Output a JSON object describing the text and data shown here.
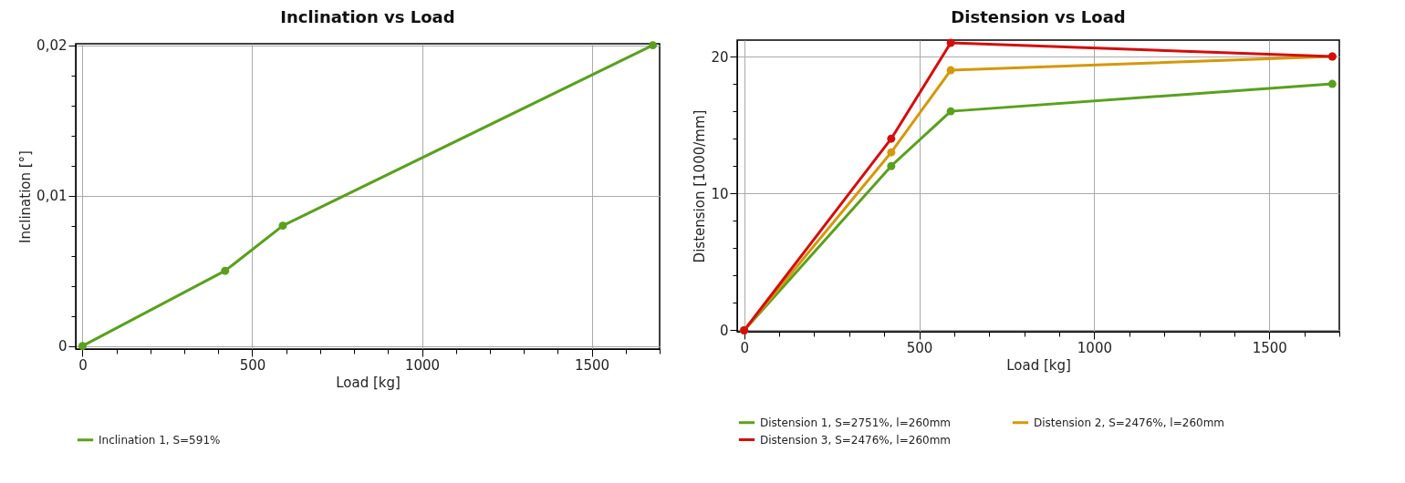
{
  "chart_data": [
    {
      "type": "line",
      "title": "Inclination vs Load",
      "xlabel": "Load [kg]",
      "ylabel": "Inclination [°]",
      "x": [
        0,
        420,
        590,
        1680
      ],
      "series": [
        {
          "name": "Inclination 1, S=591%",
          "color": "#5aa01e",
          "values": [
            0,
            0.005,
            0.008,
            0.02
          ]
        }
      ],
      "xlim": [
        -20,
        1700
      ],
      "ylim": [
        -0.0002,
        0.0201
      ],
      "xticks": [
        0,
        {
          "value": 100,
          "label": null
        },
        {
          "value": 200,
          "label": null
        },
        {
          "value": 300,
          "label": null
        },
        {
          "value": 400,
          "label": null
        },
        500,
        {
          "value": 600,
          "label": null
        },
        {
          "value": 700,
          "label": null
        },
        {
          "value": 800,
          "label": null
        },
        {
          "value": 900,
          "label": null
        },
        1000,
        {
          "value": 1100,
          "label": null
        },
        {
          "value": 1200,
          "label": null
        },
        {
          "value": 1300,
          "label": null
        },
        {
          "value": 1400,
          "label": null
        },
        1500,
        {
          "value": 1600,
          "label": null
        },
        {
          "value": 1700,
          "label": null
        }
      ],
      "yticks": [
        {
          "value": 0,
          "label": "0"
        },
        {
          "value": 0.002,
          "label": null
        },
        {
          "value": 0.004,
          "label": null
        },
        {
          "value": 0.006,
          "label": null
        },
        {
          "value": 0.008,
          "label": null
        },
        {
          "value": 0.01,
          "label": "0,01"
        },
        {
          "value": 0.012,
          "label": null
        },
        {
          "value": 0.014,
          "label": null
        },
        {
          "value": 0.016,
          "label": null
        },
        {
          "value": 0.018,
          "label": null
        },
        {
          "value": 0.02,
          "label": "0,02"
        }
      ],
      "grid": true,
      "legend": "bottom left",
      "marker": "circle",
      "line_style": "solid"
    },
    {
      "type": "line",
      "title": "Distension vs Load",
      "xlabel": "Load [kg]",
      "ylabel": "Distension [1000/mm]",
      "x": [
        0,
        420,
        590,
        1680
      ],
      "series": [
        {
          "name": "Distension 1, S=2751%, l=260mm",
          "color": "#5aa01e",
          "values": [
            0,
            12,
            16,
            18
          ]
        },
        {
          "name": "Distension 2, S=2476%, l=260mm",
          "color": "#d4980a",
          "values": [
            0,
            13,
            19,
            20
          ]
        },
        {
          "name": "Distension 3, S=2476%, l=260mm",
          "color": "#d40e0e",
          "values": [
            0,
            14,
            21,
            20
          ]
        }
      ],
      "xlim": [
        -20,
        1700
      ],
      "ylim": [
        -0.1,
        21.2
      ],
      "xticks": [
        0,
        {
          "value": 100,
          "label": null
        },
        {
          "value": 200,
          "label": null
        },
        {
          "value": 300,
          "label": null
        },
        {
          "value": 400,
          "label": null
        },
        500,
        {
          "value": 600,
          "label": null
        },
        {
          "value": 700,
          "label": null
        },
        {
          "value": 800,
          "label": null
        },
        {
          "value": 900,
          "label": null
        },
        1000,
        {
          "value": 1100,
          "label": null
        },
        {
          "value": 1200,
          "label": null
        },
        {
          "value": 1300,
          "label": null
        },
        {
          "value": 1400,
          "label": null
        },
        1500,
        {
          "value": 1600,
          "label": null
        },
        {
          "value": 1700,
          "label": null
        }
      ],
      "yticks": [
        0,
        {
          "value": 2,
          "label": null
        },
        {
          "value": 4,
          "label": null
        },
        {
          "value": 6,
          "label": null
        },
        {
          "value": 8,
          "label": null
        },
        10,
        {
          "value": 12,
          "label": null
        },
        {
          "value": 14,
          "label": null
        },
        {
          "value": 16,
          "label": null
        },
        {
          "value": 18,
          "label": null
        },
        20
      ],
      "grid": true,
      "legend": "bottom",
      "marker": "circle",
      "line_style": "solid"
    }
  ]
}
